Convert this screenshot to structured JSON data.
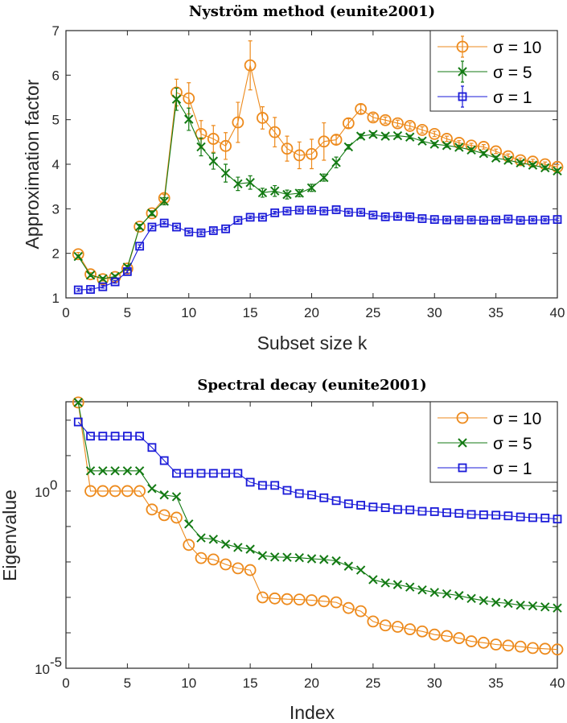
{
  "chart_data": [
    {
      "type": "line",
      "title": "Nyström method (eunite2001)",
      "xlabel": "Subset size k",
      "ylabel": "Approximation factor",
      "xlim": [
        0,
        40
      ],
      "ylim": [
        1,
        7
      ],
      "yscale": "linear",
      "xticks": [
        0,
        5,
        10,
        15,
        20,
        25,
        30,
        35,
        40
      ],
      "yticks": [
        1,
        2,
        3,
        4,
        5,
        6,
        7
      ],
      "legend_position": "top-right",
      "x": [
        1,
        2,
        3,
        4,
        5,
        6,
        7,
        8,
        9,
        10,
        11,
        12,
        13,
        14,
        15,
        16,
        17,
        18,
        19,
        20,
        21,
        22,
        23,
        24,
        25,
        26,
        27,
        28,
        29,
        30,
        31,
        32,
        33,
        34,
        35,
        36,
        37,
        38,
        39,
        40
      ],
      "series": [
        {
          "name": "σ = 10",
          "color": "#ED8A1C",
          "marker": "circle",
          "values": [
            1.98,
            1.53,
            1.42,
            1.47,
            1.66,
            2.6,
            2.9,
            3.24,
            5.61,
            5.48,
            4.68,
            4.57,
            4.41,
            4.94,
            6.22,
            5.04,
            4.72,
            4.35,
            4.2,
            4.23,
            4.51,
            4.55,
            4.92,
            5.24,
            5.05,
            4.99,
            4.92,
            4.86,
            4.77,
            4.68,
            4.57,
            4.48,
            4.42,
            4.39,
            4.29,
            4.18,
            4.09,
            4.06,
            4.0,
            3.94
          ],
          "errors": [
            0.04,
            0.04,
            0.04,
            0.04,
            0.05,
            0.05,
            0.06,
            0.08,
            0.3,
            0.35,
            0.3,
            0.3,
            0.3,
            0.45,
            0.55,
            0.25,
            0.33,
            0.28,
            0.3,
            0.33,
            0.42,
            0.1,
            0.1,
            0.1,
            0.08,
            0.07,
            0.07,
            0.07,
            0.07,
            0.06,
            0.06,
            0.05,
            0.05,
            0.05,
            0.05,
            0.05,
            0.05,
            0.05,
            0.05,
            0.05
          ]
        },
        {
          "name": "σ = 5",
          "color": "#137A13",
          "marker": "x",
          "values": [
            1.93,
            1.51,
            1.43,
            1.48,
            1.69,
            2.6,
            2.9,
            3.17,
            5.46,
            5.01,
            4.39,
            4.07,
            3.8,
            3.56,
            3.59,
            3.36,
            3.4,
            3.32,
            3.35,
            3.47,
            3.7,
            4.04,
            4.39,
            4.63,
            4.67,
            4.63,
            4.64,
            4.61,
            4.52,
            4.45,
            4.42,
            4.38,
            4.32,
            4.24,
            4.14,
            4.09,
            4.03,
            3.98,
            3.92,
            3.85
          ],
          "errors": [
            0.03,
            0.03,
            0.03,
            0.03,
            0.04,
            0.05,
            0.05,
            0.08,
            0.25,
            0.25,
            0.2,
            0.18,
            0.2,
            0.15,
            0.15,
            0.1,
            0.12,
            0.1,
            0.08,
            0.08,
            0.08,
            0.12,
            0.05,
            0.05,
            0.04,
            0.04,
            0.04,
            0.04,
            0.04,
            0.04,
            0.04,
            0.04,
            0.04,
            0.04,
            0.04,
            0.04,
            0.04,
            0.04,
            0.04,
            0.04
          ]
        },
        {
          "name": "σ = 1",
          "color": "#1A1AD8",
          "marker": "square",
          "values": [
            1.18,
            1.19,
            1.25,
            1.36,
            1.59,
            2.16,
            2.59,
            2.68,
            2.59,
            2.48,
            2.46,
            2.51,
            2.55,
            2.74,
            2.81,
            2.81,
            2.91,
            2.95,
            2.97,
            2.97,
            2.95,
            2.98,
            2.92,
            2.92,
            2.86,
            2.82,
            2.83,
            2.82,
            2.78,
            2.76,
            2.75,
            2.75,
            2.75,
            2.74,
            2.75,
            2.77,
            2.74,
            2.75,
            2.75,
            2.76
          ],
          "errors": [
            0.03,
            0.03,
            0.03,
            0.03,
            0.03,
            0.03,
            0.03,
            0.03,
            0.03,
            0.03,
            0.04,
            0.04,
            0.03,
            0.03,
            0.03,
            0.03,
            0.03,
            0.03,
            0.03,
            0.03,
            0.03,
            0.03,
            0.03,
            0.03,
            0.03,
            0.03,
            0.03,
            0.03,
            0.03,
            0.03,
            0.03,
            0.03,
            0.03,
            0.03,
            0.03,
            0.03,
            0.03,
            0.03,
            0.03,
            0.03
          ]
        }
      ]
    },
    {
      "type": "line",
      "title": "Spectral decay (eunite2001)",
      "xlabel": "Index",
      "ylabel": "Eigenvalue",
      "xlim": [
        0,
        40
      ],
      "ylim_log10": [
        -5,
        2.52
      ],
      "yscale": "log",
      "xticks": [
        0,
        5,
        10,
        15,
        20,
        25,
        30,
        35,
        40
      ],
      "ytick_labels": [
        {
          "base": "10",
          "exp": "0",
          "log10": 0
        },
        {
          "base": "10",
          "exp": "-5",
          "log10": -5
        }
      ],
      "legend_position": "top-right",
      "x": [
        1,
        2,
        3,
        4,
        5,
        6,
        7,
        8,
        9,
        10,
        11,
        12,
        13,
        14,
        15,
        16,
        17,
        18,
        19,
        20,
        21,
        22,
        23,
        24,
        25,
        26,
        27,
        28,
        29,
        30,
        31,
        32,
        33,
        34,
        35,
        36,
        37,
        38,
        39,
        40
      ],
      "series": [
        {
          "name": "σ = 10",
          "color": "#ED8A1C",
          "marker": "circle",
          "log10_values": [
            2.5,
            0,
            0,
            0,
            0,
            0,
            -0.52,
            -0.68,
            -0.75,
            -1.52,
            -1.89,
            -1.93,
            -2.07,
            -2.18,
            -2.23,
            -3.0,
            -3.03,
            -3.05,
            -3.06,
            -3.08,
            -3.11,
            -3.14,
            -3.3,
            -3.39,
            -3.68,
            -3.79,
            -3.83,
            -3.9,
            -3.96,
            -4.05,
            -4.09,
            -4.15,
            -4.24,
            -4.28,
            -4.33,
            -4.36,
            -4.39,
            -4.43,
            -4.45,
            -4.47
          ]
        },
        {
          "name": "σ = 5",
          "color": "#137A13",
          "marker": "x",
          "log10_values": [
            2.5,
            0.57,
            0.57,
            0.57,
            0.57,
            0.57,
            0.07,
            -0.11,
            -0.16,
            -0.93,
            -1.32,
            -1.36,
            -1.5,
            -1.59,
            -1.64,
            -1.82,
            -1.86,
            -1.87,
            -1.88,
            -1.91,
            -1.93,
            -1.97,
            -2.12,
            -2.23,
            -2.5,
            -2.59,
            -2.64,
            -2.71,
            -2.79,
            -2.86,
            -2.9,
            -2.95,
            -3.03,
            -3.09,
            -3.14,
            -3.17,
            -3.22,
            -3.24,
            -3.27,
            -3.3
          ]
        },
        {
          "name": "σ = 1",
          "color": "#1A1AD8",
          "marker": "square",
          "log10_values": [
            1.95,
            1.55,
            1.55,
            1.55,
            1.55,
            1.55,
            1.23,
            0.86,
            0.5,
            0.5,
            0.5,
            0.5,
            0.5,
            0.5,
            0.25,
            0.16,
            0.16,
            0.02,
            -0.07,
            -0.11,
            -0.19,
            -0.27,
            -0.36,
            -0.4,
            -0.45,
            -0.47,
            -0.52,
            -0.53,
            -0.57,
            -0.58,
            -0.61,
            -0.63,
            -0.66,
            -0.67,
            -0.68,
            -0.7,
            -0.73,
            -0.75,
            -0.76,
            -0.79
          ]
        }
      ]
    }
  ]
}
